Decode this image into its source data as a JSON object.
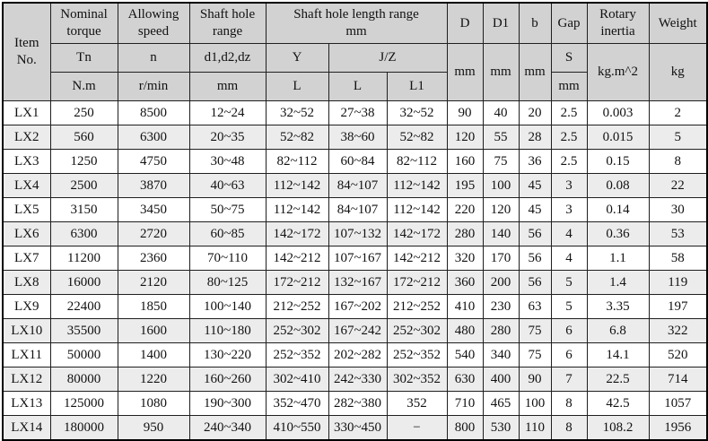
{
  "table": {
    "header": {
      "item": "Item No.",
      "nominal": {
        "title": "Nominal torque",
        "symbol": "Tn",
        "unit": "N.m"
      },
      "speed": {
        "title": "Allowing speed",
        "symbol": "n",
        "unit": "r/min"
      },
      "shaft_hole_range": {
        "title": "Shaft hole range",
        "symbol": "d1,d2,dz",
        "unit": "mm"
      },
      "shaft_hole_length": {
        "title": "Shaft hole length range",
        "unit": "mm",
        "group_y": "Y",
        "group_jz": "J/Z",
        "y_l": "L",
        "jz_l": "L",
        "jz_l1": "L1"
      },
      "d": {
        "title": "D",
        "unit": "mm"
      },
      "d1": {
        "title": "D1",
        "unit": "mm"
      },
      "b": {
        "title": "b",
        "unit": "mm"
      },
      "gap": {
        "title": "Gap",
        "symbol": "S",
        "unit": "mm"
      },
      "inertia": {
        "title": "Rotary inertia",
        "unit": "kg.m^2"
      },
      "weight": {
        "title": "Weight",
        "unit": "kg"
      }
    },
    "columns": [
      "item",
      "torque",
      "speed",
      "hole_range",
      "y_l",
      "jz_l",
      "jz_l1",
      "d",
      "d1",
      "b",
      "s",
      "inertia",
      "weight"
    ],
    "rows": [
      [
        "LX1",
        "250",
        "8500",
        "12~24",
        "32~52",
        "27~38",
        "32~52",
        "90",
        "40",
        "20",
        "2.5",
        "0.003",
        "2"
      ],
      [
        "LX2",
        "560",
        "6300",
        "20~35",
        "52~82",
        "38~60",
        "52~82",
        "120",
        "55",
        "28",
        "2.5",
        "0.015",
        "5"
      ],
      [
        "LX3",
        "1250",
        "4750",
        "30~48",
        "82~112",
        "60~84",
        "82~112",
        "160",
        "75",
        "36",
        "2.5",
        "0.15",
        "8"
      ],
      [
        "LX4",
        "2500",
        "3870",
        "40~63",
        "112~142",
        "84~107",
        "112~142",
        "195",
        "100",
        "45",
        "3",
        "0.08",
        "22"
      ],
      [
        "LX5",
        "3150",
        "3450",
        "50~75",
        "112~142",
        "84~107",
        "112~142",
        "220",
        "120",
        "45",
        "3",
        "0.14",
        "30"
      ],
      [
        "LX6",
        "6300",
        "2720",
        "60~85",
        "142~172",
        "107~132",
        "142~172",
        "280",
        "140",
        "56",
        "4",
        "0.36",
        "53"
      ],
      [
        "LX7",
        "11200",
        "2360",
        "70~110",
        "142~212",
        "107~167",
        "142~212",
        "320",
        "170",
        "56",
        "4",
        "1.1",
        "58"
      ],
      [
        "LX8",
        "16000",
        "2120",
        "80~125",
        "172~212",
        "132~167",
        "172~212",
        "360",
        "200",
        "56",
        "5",
        "1.4",
        "119"
      ],
      [
        "LX9",
        "22400",
        "1850",
        "100~140",
        "212~252",
        "167~202",
        "212~252",
        "410",
        "230",
        "63",
        "5",
        "3.35",
        "197"
      ],
      [
        "LX10",
        "35500",
        "1600",
        "110~180",
        "252~302",
        "167~242",
        "252~302",
        "480",
        "280",
        "75",
        "6",
        "6.8",
        "322"
      ],
      [
        "LX11",
        "50000",
        "1400",
        "130~220",
        "252~352",
        "202~282",
        "252~352",
        "540",
        "340",
        "75",
        "6",
        "14.1",
        "520"
      ],
      [
        "LX12",
        "80000",
        "1220",
        "160~260",
        "302~410",
        "242~330",
        "302~352",
        "630",
        "400",
        "90",
        "7",
        "22.5",
        "714"
      ],
      [
        "LX13",
        "125000",
        "1080",
        "190~300",
        "352~470",
        "282~380",
        "352",
        "710",
        "465",
        "100",
        "8",
        "42.5",
        "1057"
      ],
      [
        "LX14",
        "180000",
        "950",
        "240~340",
        "410~550",
        "330~450",
        "−",
        "800",
        "530",
        "110",
        "8",
        "108.2",
        "1956"
      ]
    ],
    "colors": {
      "header_bg": "#d2d2d2",
      "band_row_bg": "#ececec",
      "row_bg": "#ffffff",
      "border": "#1f1f1f",
      "text": "#111111"
    }
  }
}
